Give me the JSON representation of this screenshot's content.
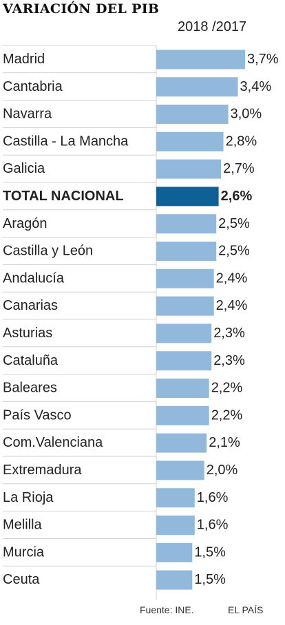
{
  "chart_data": {
    "type": "bar",
    "orientation": "horizontal",
    "title": "VARIACIÓN DEL PIB",
    "subtitle": "2018 /2017",
    "categories": [
      "Madrid",
      "Cantabria",
      "Navarra",
      "Castilla - La Mancha",
      "Galicia",
      "TOTAL NACIONAL",
      "Aragón",
      "Castilla y León",
      "Andalucía",
      "Canarias",
      "Asturias",
      "Cataluña",
      "Baleares",
      "País Vasco",
      "Com.Valenciana",
      "Extremadura",
      "La Rioja",
      "Melilla",
      "Murcia",
      "Ceuta"
    ],
    "values": [
      3.7,
      3.4,
      3.0,
      2.8,
      2.7,
      2.6,
      2.5,
      2.5,
      2.4,
      2.4,
      2.3,
      2.3,
      2.2,
      2.2,
      2.1,
      2.0,
      1.6,
      1.6,
      1.5,
      1.5
    ],
    "value_labels": [
      "3,7%",
      "3,4%",
      "3,0%",
      "2,8%",
      "2,7%",
      "2,6%",
      "2,5%",
      "2,5%",
      "2,4%",
      "2,4%",
      "2,3%",
      "2,3%",
      "2,2%",
      "2,2%",
      "2,1%",
      "2,0%",
      "1,6%",
      "1,6%",
      "1,5%",
      "1,5%"
    ],
    "highlight": "TOTAL NACIONAL",
    "colors": {
      "bar": "#92b9db",
      "highlight": "#0f6096"
    },
    "xlim": [
      0,
      3.7
    ],
    "grid": true
  },
  "footer": {
    "source": "Fuente: INE.",
    "brand": "EL PAÍS"
  }
}
